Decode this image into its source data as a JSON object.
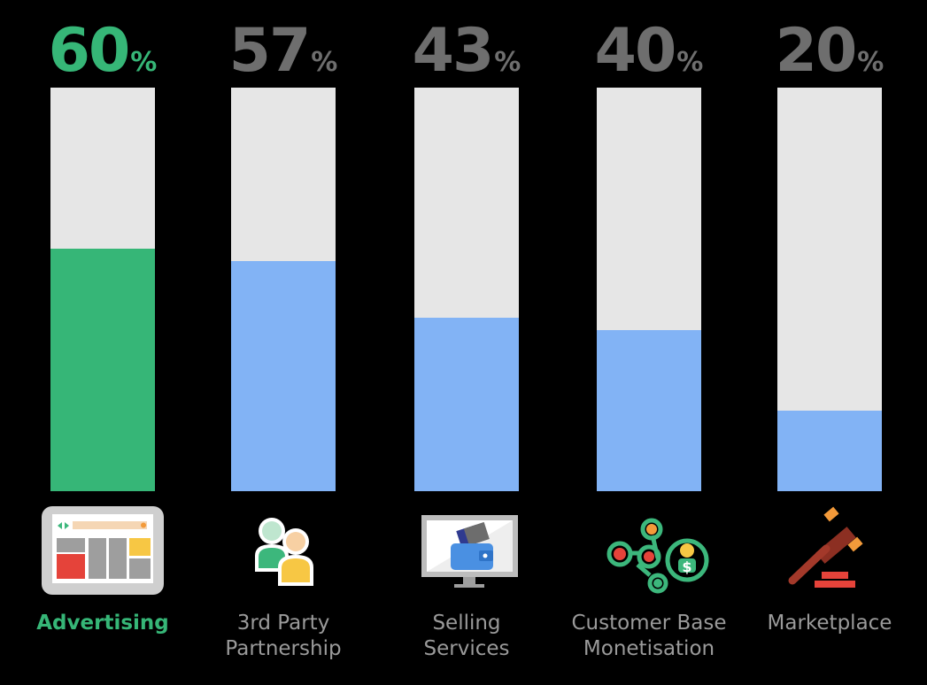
{
  "colors": {
    "background": "#000000",
    "track": "#e6e6e6",
    "highlight": "#36b677",
    "bar": "#82b3f5",
    "muted_text": "#6e6e6e",
    "label_text": "#9a9a9a"
  },
  "chart_data": {
    "type": "bar",
    "title": "",
    "xlabel": "",
    "ylabel": "",
    "ylim": [
      0,
      100
    ],
    "grid": false,
    "categories": [
      "Advertising",
      "3rd Party\nPartnership",
      "Selling\nServices",
      "Customer Base\nMonetisation",
      "Marketplace"
    ],
    "values": [
      60,
      57,
      43,
      40,
      20
    ],
    "unit": "%",
    "highlight_index": 0,
    "icons": [
      "advertising-browser-icon",
      "partnership-people-icon",
      "wallet-monitor-icon",
      "customer-network-icon",
      "gavel-icon"
    ]
  }
}
